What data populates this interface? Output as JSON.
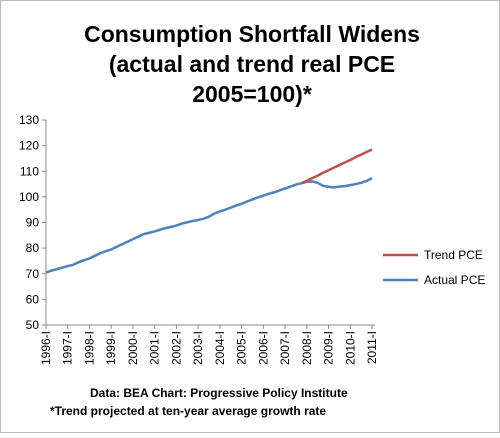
{
  "chart_data": {
    "type": "line",
    "title": [
      "Consumption Shortfall Widens",
      "(actual and trend real PCE",
      "2005=100)*"
    ],
    "notes": [
      "Data: BEA  Chart: Progressive Policy Institute",
      "*Trend projected at ten-year average growth rate"
    ],
    "categories": [
      "1996-I",
      null,
      null,
      null,
      "1997-I",
      null,
      null,
      null,
      "1998-I",
      null,
      null,
      null,
      "1999-I",
      null,
      null,
      null,
      "2000-I",
      null,
      null,
      null,
      "2001-I",
      null,
      null,
      null,
      "2002-I",
      null,
      null,
      null,
      "2003-I",
      null,
      null,
      null,
      "2004-I",
      null,
      null,
      null,
      "2005-I",
      null,
      null,
      null,
      "2006-I",
      null,
      null,
      null,
      "2007-I",
      null,
      null,
      null,
      "2008-I",
      null,
      null,
      null,
      "2009-I",
      null,
      null,
      null,
      "2010-I",
      null,
      null,
      null,
      "2011-I"
    ],
    "series": [
      {
        "name": "Trend PCE",
        "color": "#c0504d",
        "values": [
          null,
          null,
          null,
          null,
          null,
          null,
          null,
          null,
          null,
          null,
          null,
          null,
          null,
          null,
          null,
          null,
          null,
          null,
          null,
          null,
          null,
          null,
          null,
          null,
          null,
          null,
          null,
          null,
          null,
          null,
          null,
          null,
          null,
          null,
          null,
          null,
          null,
          null,
          null,
          null,
          null,
          null,
          null,
          null,
          null,
          null,
          null,
          105.3,
          106.3,
          107.3,
          108.3,
          109.4,
          110.4,
          111.4,
          112.4,
          113.4,
          114.4,
          115.5,
          116.5,
          117.5,
          118.5
        ]
      },
      {
        "name": "Actual PCE",
        "color": "#4f81bd",
        "values": [
          70.5,
          71.2,
          71.8,
          72.4,
          73.0,
          73.5,
          74.5,
          75.3,
          76.0,
          77.0,
          78.0,
          78.8,
          79.5,
          80.5,
          81.5,
          82.5,
          83.5,
          84.5,
          85.5,
          86.0,
          86.5,
          87.2,
          87.8,
          88.3,
          88.8,
          89.6,
          90.1,
          90.6,
          91.0,
          91.5,
          92.3,
          93.5,
          94.3,
          95.0,
          95.8,
          96.6,
          97.3,
          98.2,
          99.0,
          99.8,
          100.5,
          101.2,
          101.8,
          102.5,
          103.3,
          104.0,
          104.8,
          105.3,
          105.9,
          106.0,
          105.5,
          104.3,
          103.9,
          103.7,
          104.0,
          104.2,
          104.6,
          105.0,
          105.5,
          106.2,
          107.3
        ]
      }
    ],
    "ylim": [
      50,
      130
    ],
    "yticks": [
      50,
      60,
      70,
      80,
      90,
      100,
      110,
      120,
      130
    ],
    "grid": false,
    "legend": "right"
  }
}
